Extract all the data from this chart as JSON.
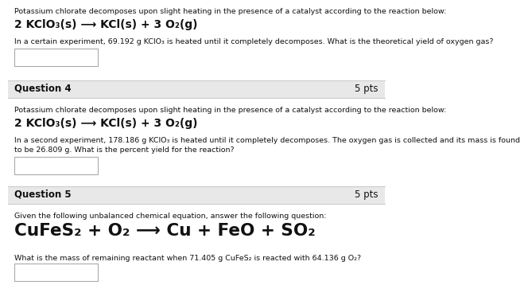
{
  "bg_color": "#ffffff",
  "header_bg": "#e8e8e8",
  "header_border": "#cccccc",
  "text_color": "#111111",
  "box_border": "#aaaaaa",
  "intro_text_q3": "Potassium chlorate decomposes upon slight heating in the presence of a catalyst according to the reaction below:",
  "equation_q3": "2 KClO₃(s) ⟶ KCl(s) + 3 O₂(g)",
  "body_text_q3": "In a certain experiment, 69.192 g KClO₃ is heated until it completely decomposes. What is the theoretical yield of oxygen gas?",
  "q4_label": "Question 4",
  "q4_pts": "5 pts",
  "intro_text_q4": "Potassium chlorate decomposes upon slight heating in the presence of a catalyst according to the reaction below:",
  "equation_q4": "2 KClO₃(s) ⟶ KCl(s) + 3 O₂(g)",
  "body_text_q4a": "In a second experiment, 178.186 g KClO₃ is heated until it completely decomposes. The oxygen gas is collected and its mass is found",
  "body_text_q4b": "to be 26.809 g. What is the percent yield for the reaction?",
  "q5_label": "Question 5",
  "q5_pts": "5 pts",
  "intro_text_q5": "Given the following unbalanced chemical equation, answer the following question:",
  "equation_q5": "CuFeS₂ + O₂ ⟶ Cu + FeO + SO₂",
  "body_text_q5": "What is the mass of remaining reactant when 71.405 g CuFeS₂ is reacted with 64.136 g O₂?",
  "small_fs": 6.8,
  "med_fs": 10.0,
  "large_fs": 15.5,
  "label_fs": 8.5
}
